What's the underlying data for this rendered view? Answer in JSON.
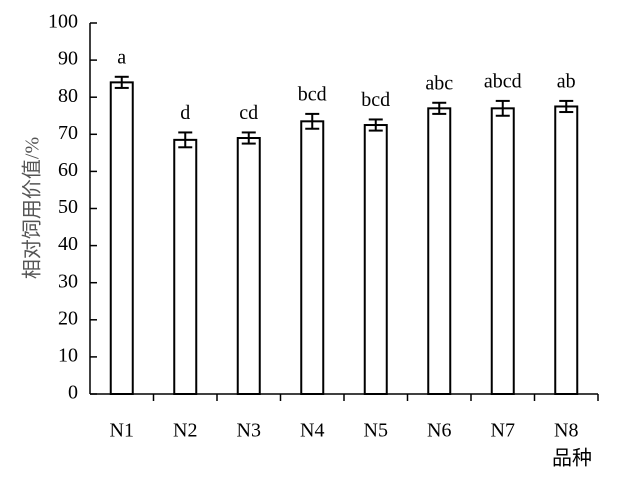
{
  "chart_data": {
    "type": "bar",
    "y_label": "相对饲用价值/%",
    "x_label": "品种",
    "categories": [
      "N1",
      "N2",
      "N3",
      "N4",
      "N5",
      "N6",
      "N7",
      "N8"
    ],
    "values": [
      84,
      68.5,
      69,
      73.5,
      72.5,
      77,
      77,
      77.5
    ],
    "errors": [
      1.5,
      2,
      1.5,
      2,
      1.5,
      1.5,
      2,
      1.5
    ],
    "letters": [
      "a",
      "d",
      "cd",
      "bcd",
      "bcd",
      "abc",
      "abcd",
      "ab"
    ],
    "color": "#ffffff",
    "ylim": [
      0,
      100
    ],
    "yticks": [
      0,
      10,
      20,
      30,
      40,
      50,
      60,
      70,
      80,
      90,
      100
    ],
    "grid": false
  }
}
